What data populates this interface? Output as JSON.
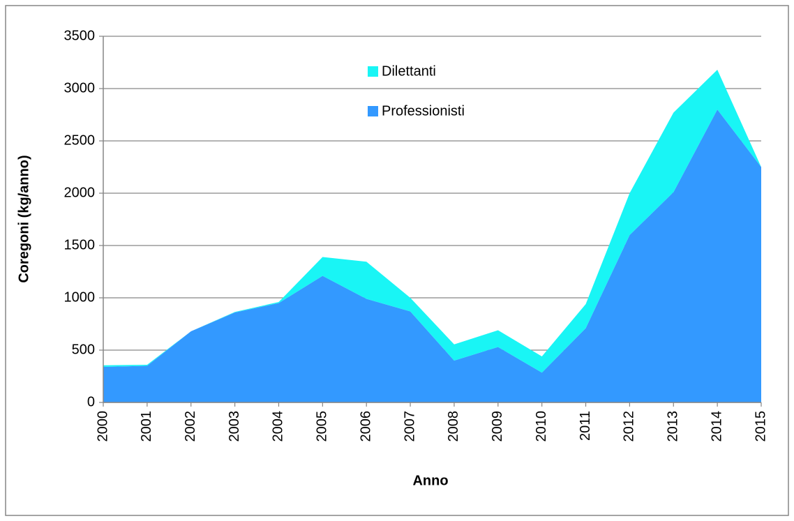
{
  "chart_data": {
    "type": "stacked_area",
    "x_label": "Anno",
    "y_label": "Coregoni (kg/anno)",
    "categories": [
      "2000",
      "2001",
      "2002",
      "2003",
      "2004",
      "2005",
      "2006",
      "2007",
      "2008",
      "2009",
      "2010",
      "2011",
      "2012",
      "2013",
      "2014",
      "2015"
    ],
    "series": [
      {
        "name": "Professionisti",
        "color": "#3399ff",
        "values": [
          340,
          350,
          680,
          860,
          950,
          1210,
          990,
          870,
          400,
          530,
          285,
          710,
          1600,
          2010,
          2800,
          2250
        ]
      },
      {
        "name": "Dilettanti",
        "color": "#19f5f5",
        "values": [
          15,
          10,
          0,
          5,
          10,
          180,
          355,
          130,
          155,
          160,
          155,
          230,
          400,
          760,
          380,
          0
        ]
      }
    ],
    "ylim": [
      0,
      3500
    ],
    "yticks": [
      0,
      500,
      1000,
      1500,
      2000,
      2500,
      3000,
      3500
    ],
    "grid": true
  }
}
